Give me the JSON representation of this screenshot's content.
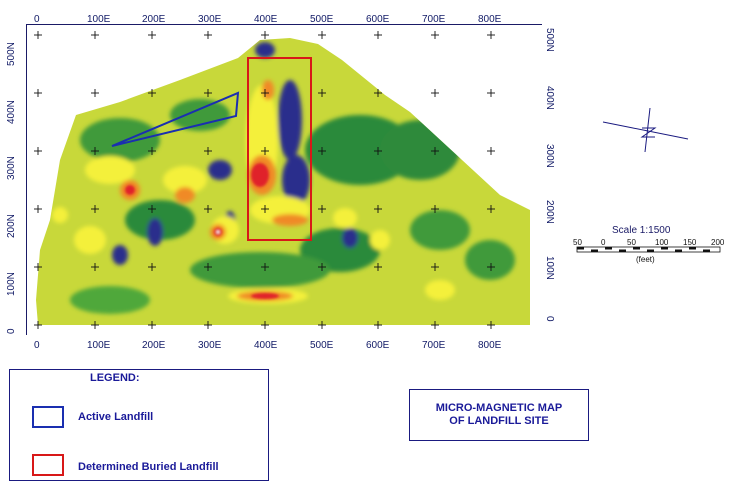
{
  "map": {
    "x_ticks_top": [
      "0",
      "100E",
      "200E",
      "300E",
      "400E",
      "500E",
      "600E",
      "700E",
      "800E"
    ],
    "x_ticks_bottom": [
      "0",
      "100E",
      "200E",
      "300E",
      "400E",
      "500E",
      "600E",
      "700E",
      "800E"
    ],
    "y_ticks_left": [
      "500N",
      "400N",
      "300N",
      "200N",
      "100N",
      "0"
    ],
    "y_ticks_right": [
      "500N",
      "400N",
      "300N",
      "200N",
      "100N",
      "0"
    ],
    "colors": {
      "background_field": "#c8d83a",
      "low_field": "#2a8a3a",
      "very_low": "#2a2f8c",
      "high": "#f4f03a",
      "higher": "#f08a28",
      "peak": "#e0202a",
      "active_landfill_outline": "#1a2fb0",
      "buried_landfill_outline": "#d81818"
    }
  },
  "scale": {
    "title": "Scale 1:1500",
    "ticks": [
      "50",
      "0",
      "50",
      "100",
      "150",
      "200"
    ],
    "unit": "(feet)"
  },
  "legend": {
    "title": "LEGEND:",
    "items": [
      {
        "label": "Active Landfill",
        "color": "#1a2fb0"
      },
      {
        "label": "Determined Buried Landfill",
        "color": "#d81818"
      }
    ]
  },
  "title": {
    "line1": "MICRO-MAGNETIC MAP",
    "line2": "OF LANDFILL SITE"
  }
}
